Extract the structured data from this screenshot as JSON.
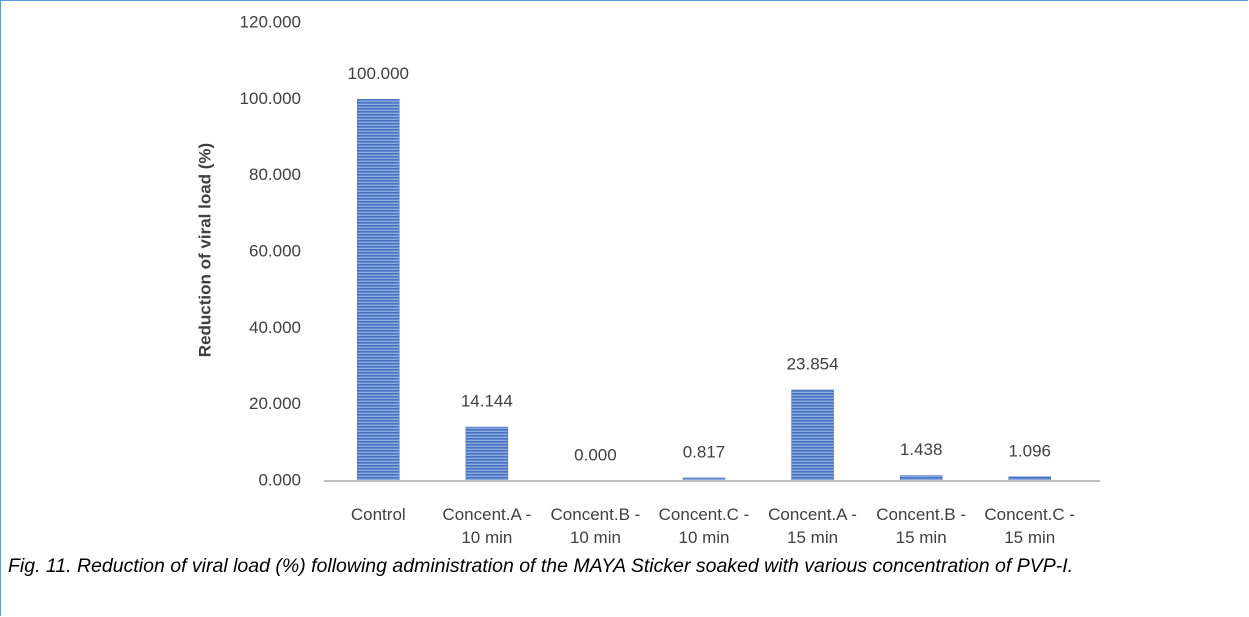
{
  "chart_data": {
    "type": "bar",
    "y_label": "Reduction of viral load (%)",
    "categories": [
      "Control",
      "Concent.A - 10 min",
      "Concent.B - 10 min",
      "Concent.C - 10 min",
      "Concent.A - 15 min",
      "Concent.B - 15 min",
      "Concent.C - 15 min"
    ],
    "values": [
      100,
      14.144,
      0,
      0.817,
      23.854,
      1.438,
      1.096
    ],
    "value_labels": [
      "100.000",
      "14.144",
      "0.000",
      "0.817",
      "23.854",
      "1.438",
      "1.096"
    ],
    "color": "#4472c4",
    "ylim": [
      0,
      120
    ],
    "yticks": [
      {
        "value": 0,
        "label": "0.000"
      },
      {
        "value": 20,
        "label": "20.000"
      },
      {
        "value": 40,
        "label": "40.000"
      },
      {
        "value": 60,
        "label": "60.000"
      },
      {
        "value": 80,
        "label": "80.000"
      },
      {
        "value": 100,
        "label": "100.000"
      },
      {
        "value": 120,
        "label": "120.000"
      }
    ],
    "grid": false
  },
  "caption": "Fig. 11. Reduction of viral load (%) following administration of the MAYA Sticker soaked with various concentration of PVP-I."
}
